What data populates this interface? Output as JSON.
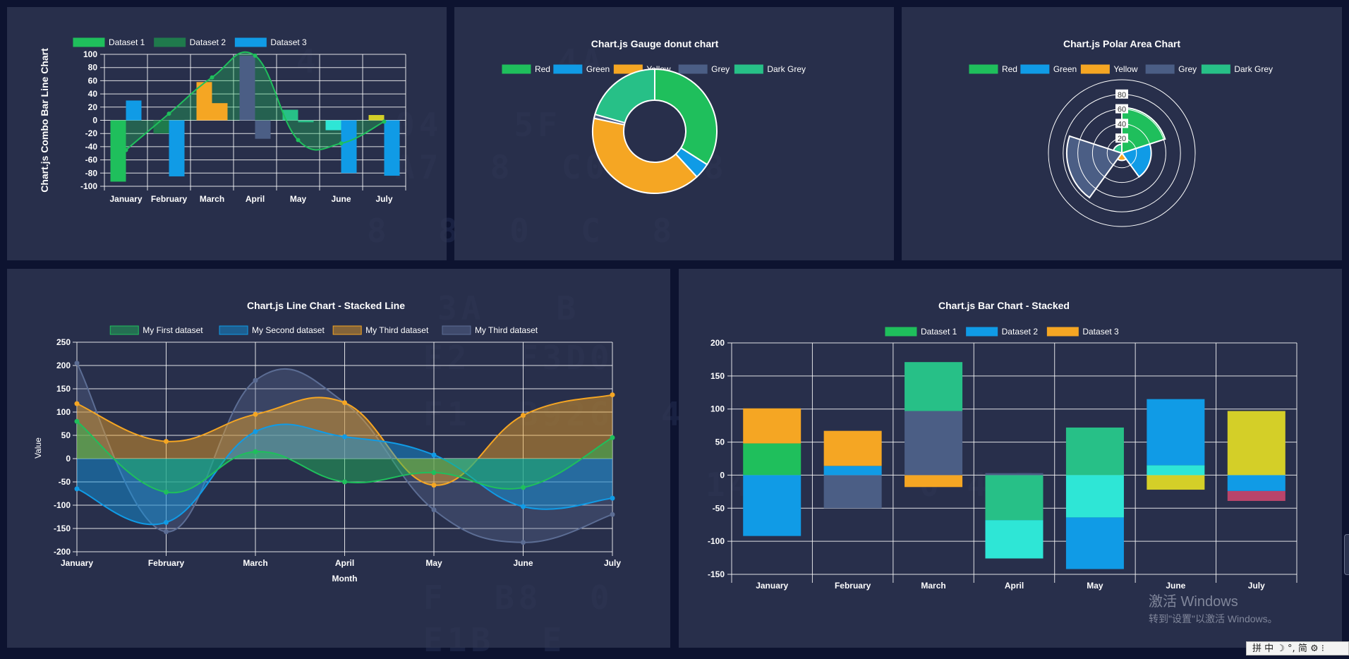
{
  "windows_watermark": {
    "line1": "激活 Windows",
    "line2": "转到\"设置\"以激活 Windows。"
  },
  "ime_bar": "拼 中 ☽ °, 简 ⚙ ⁝",
  "chart_data": [
    {
      "id": "combo",
      "type": "bar",
      "title": "Chart.js Combo Bar Line Chart",
      "categories": [
        "January",
        "February",
        "March",
        "April",
        "May",
        "June",
        "July"
      ],
      "ylim": [
        -100,
        100
      ],
      "yticks": [
        100,
        80,
        60,
        40,
        20,
        0,
        -20,
        -40,
        -60,
        -80,
        -100
      ],
      "legend_position": "top",
      "series": [
        {
          "name": "Dataset 1",
          "type": "line",
          "color": "#1fbf5c",
          "values": [
            -45,
            10,
            65,
            98,
            -30,
            -35,
            -2
          ]
        },
        {
          "name": "Dataset 2",
          "type": "bar",
          "color": "#1f7a4c",
          "values": [
            -93,
            -20,
            58,
            98,
            16,
            -15,
            8
          ]
        },
        {
          "name": "Dataset 3",
          "type": "bar",
          "color": "#109be6",
          "values": [
            30,
            -85,
            26,
            -28,
            -3,
            -80,
            -84
          ]
        }
      ],
      "bar_colors": [
        [
          "#1fbf5c",
          "#1f7a4c",
          "#f5a623",
          "#4b5e85",
          "#27c087",
          "#2ee6d6",
          "#d4cf28"
        ],
        [
          "#109be6",
          "#109be6",
          "#f5a623",
          "#4b5e85",
          "#27c087",
          "#109be6",
          "#109be6"
        ]
      ]
    },
    {
      "id": "donut",
      "type": "pie",
      "title": "Chart.js Gauge donut chart",
      "labels": [
        "Red",
        "Green",
        "Yellow",
        "Grey",
        "Dark Grey"
      ],
      "colors": [
        "#1fbf5c",
        "#109be6",
        "#f5a623",
        "#4b5e85",
        "#27c087"
      ],
      "values": [
        33,
        4,
        39,
        1,
        20
      ],
      "legend_position": "top"
    },
    {
      "id": "polar",
      "type": "polar",
      "title": "Chart.js Polar Area Chart",
      "labels": [
        "Red",
        "Green",
        "Yellow",
        "Grey",
        "Dark Grey"
      ],
      "colors": [
        "#1fbf5c",
        "#109be6",
        "#f5a623",
        "#4b5e85",
        "#27c087"
      ],
      "values": [
        62,
        40,
        10,
        75,
        12
      ],
      "rmax": 100,
      "rticks": [
        20,
        40,
        60,
        80
      ],
      "legend_position": "top"
    },
    {
      "id": "stacked_line",
      "type": "area",
      "title": "Chart.js Line Chart - Stacked Line",
      "xlabel": "Month",
      "ylabel": "Value",
      "categories": [
        "January",
        "February",
        "March",
        "April",
        "May",
        "June",
        "July"
      ],
      "ylim": [
        -200,
        250
      ],
      "yticks": [
        250,
        200,
        150,
        100,
        50,
        0,
        -50,
        -100,
        -150,
        -200
      ],
      "legend_position": "top",
      "series": [
        {
          "name": "My First dataset",
          "color": "#1fbf5c",
          "values": [
            80,
            -72,
            15,
            -50,
            -30,
            -62,
            45
          ]
        },
        {
          "name": "My Second dataset",
          "color": "#109be6",
          "values": [
            -65,
            -137,
            58,
            47,
            8,
            -103,
            -85
          ]
        },
        {
          "name": "My Third dataset",
          "color": "#f5a623",
          "values": [
            118,
            37,
            95,
            120,
            -57,
            93,
            137
          ]
        },
        {
          "name": "My Third dataset",
          "color": "#5c6d94",
          "values": [
            205,
            -157,
            168,
            120,
            -110,
            -180,
            -120
          ]
        }
      ]
    },
    {
      "id": "stacked_bar",
      "type": "bar",
      "title": "Chart.js Bar Chart - Stacked",
      "categories": [
        "January",
        "February",
        "March",
        "April",
        "May",
        "June",
        "July"
      ],
      "ylim": [
        -150,
        200
      ],
      "yticks": [
        200,
        150,
        100,
        50,
        0,
        -50,
        -100,
        -150
      ],
      "legend_position": "top",
      "legend": [
        {
          "name": "Dataset 1",
          "color": "#1fbf5c"
        },
        {
          "name": "Dataset 2",
          "color": "#109be6"
        },
        {
          "name": "Dataset 3",
          "color": "#f5a623"
        }
      ],
      "series": [
        {
          "name": "Dataset 1",
          "values": [
            48,
            -50,
            -18,
            -68,
            72,
            -22,
            97
          ],
          "colors": [
            "#1fbf5c",
            "#4b5e85",
            "#f5a623",
            "#27c087",
            "#27c087",
            "#d4cf28",
            "#d4cf28"
          ]
        },
        {
          "name": "Dataset 2",
          "values": [
            -92,
            14,
            97,
            -58,
            -64,
            15,
            -24
          ],
          "colors": [
            "#109be6",
            "#109be6",
            "#4b5e85",
            "#2ee6d6",
            "#2ee6d6",
            "#2ee6d6",
            "#109be6"
          ]
        },
        {
          "name": "Dataset 3",
          "values": [
            53,
            53,
            74,
            3,
            -78,
            100,
            -15
          ],
          "colors": [
            "#f5a623",
            "#f5a623",
            "#27c087",
            "#4b5e85",
            "#109be6",
            "#109be6",
            "#b9446a"
          ]
        }
      ]
    }
  ]
}
